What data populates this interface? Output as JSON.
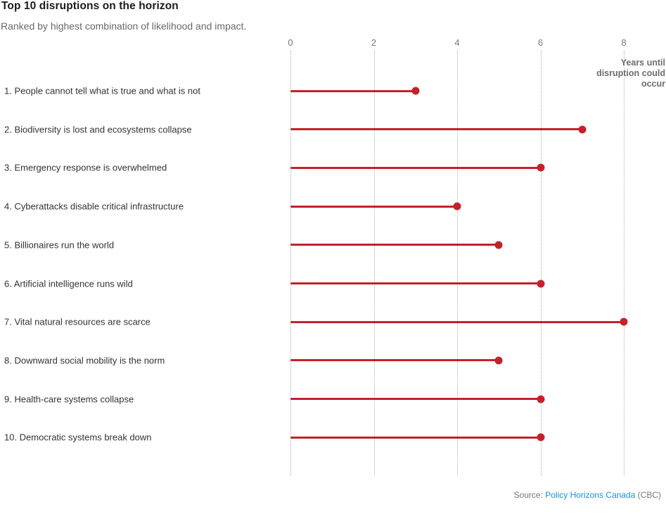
{
  "chart_data": {
    "type": "bar",
    "variant": "horizontal-lollipop",
    "title": "Top 10 disruptions on the horizon",
    "subtitle": "Ranked by highest combination of likelihood and impact.",
    "categories": [
      "1. People cannot tell what is true and what is not",
      "2. Biodiversity is lost and ecosystems collapse",
      "3. Emergency response is overwhelmed",
      "4. Cyberattacks disable critical infrastructure",
      "5. Billionaires run the world",
      "6. Artificial intelligence runs wild",
      "7. Vital natural resources are scarce",
      "8. Downward social mobility is the norm",
      "9. Health-care systems collapse",
      "10. Democratic systems break down"
    ],
    "values": [
      3,
      7,
      6,
      4,
      5,
      6,
      8,
      5,
      6,
      6
    ],
    "xlabel": "Years until disruption could occur",
    "ylabel": "",
    "xlim": [
      0,
      8
    ],
    "xticks": [
      0,
      2,
      4,
      6,
      8
    ],
    "grid": "vertical-dotted",
    "legend": "none"
  },
  "axis_label_lines": [
    "Years until",
    "disruption could",
    "occur"
  ],
  "source": {
    "prefix": "Source: ",
    "link_text": "Policy Horizons Canada",
    "suffix": " (CBC)"
  },
  "colors": {
    "accent_red": "#c4212b",
    "link_blue": "#1492d2",
    "grid_gray": "#b0b0b0",
    "title_text": "#1a1a1a",
    "muted_text": "#696969"
  }
}
